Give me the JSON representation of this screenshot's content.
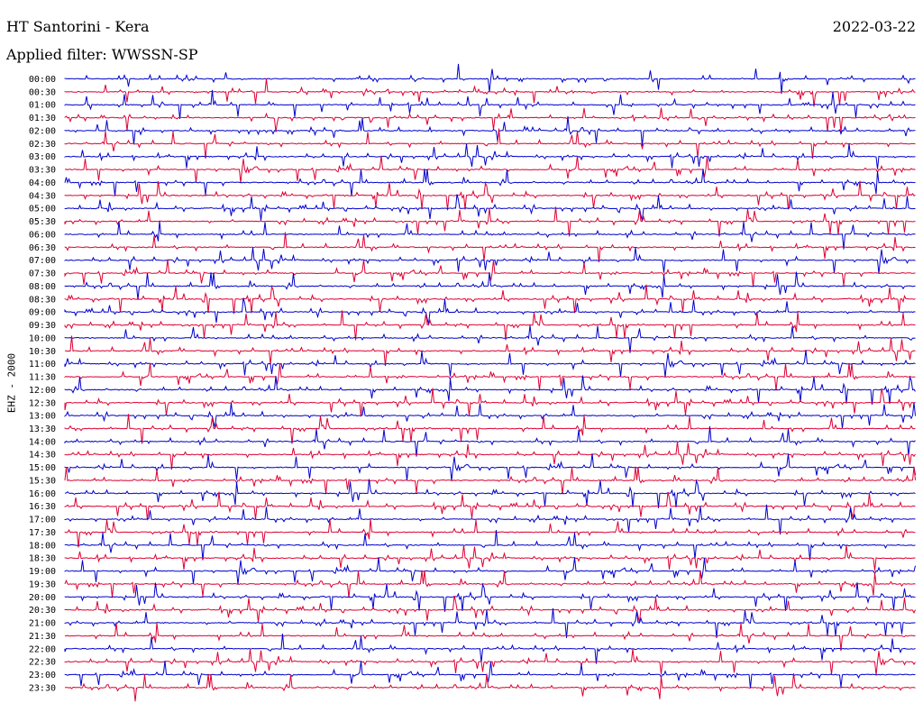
{
  "header": {
    "station": "HT Santorini - Kera",
    "date": "2022-03-22",
    "filter": "Applied filter: WWSSN-SP",
    "channel": "EHZ - 2000"
  },
  "chart_data": {
    "type": "line",
    "title": "HT Santorini - Kera",
    "date": "2022-03-22",
    "filter": "WWSSN-SP",
    "channel": "EHZ - 2000",
    "row_labels": [
      "00:00",
      "00:30",
      "01:00",
      "01:30",
      "02:00",
      "02:30",
      "03:00",
      "03:30",
      "04:00",
      "04:30",
      "05:00",
      "05:30",
      "06:00",
      "06:30",
      "07:00",
      "07:30",
      "08:00",
      "08:30",
      "09:00",
      "09:30",
      "10:00",
      "10:30",
      "11:00",
      "11:30",
      "12:00",
      "12:30",
      "13:00",
      "13:30",
      "14:00",
      "14:30",
      "15:00",
      "15:30",
      "16:00",
      "16:30",
      "17:00",
      "17:30",
      "18:00",
      "18:30",
      "19:00",
      "19:30",
      "20:00",
      "20:30",
      "21:00",
      "21:30",
      "22:00",
      "22:30",
      "23:00",
      "23:30"
    ],
    "series": [
      {
        "color": "#0000cc"
      },
      {
        "color": "#dd0033"
      }
    ]
  }
}
